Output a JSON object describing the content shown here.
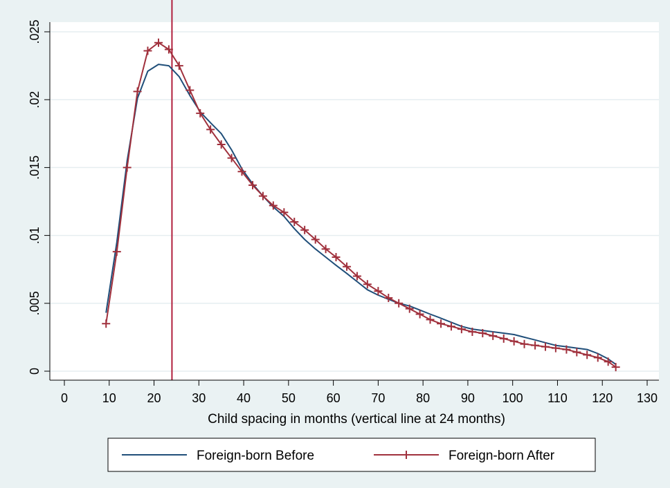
{
  "chart_data": {
    "type": "line",
    "title": "",
    "xlabel": "Child spacing in months (vertical line at 24 months)",
    "ylabel": "",
    "xlim": [
      0,
      130
    ],
    "ylim": [
      0,
      0.025
    ],
    "x_ticks": [
      0,
      10,
      20,
      30,
      40,
      50,
      60,
      70,
      80,
      90,
      100,
      110,
      120,
      130
    ],
    "x_tick_labels": [
      "0",
      "10",
      "20",
      "30",
      "40",
      "50",
      "60",
      "70",
      "80",
      "90",
      "100",
      "110",
      "120",
      "130"
    ],
    "y_ticks": [
      0,
      0.005,
      0.01,
      0.015,
      0.02,
      0.025
    ],
    "y_tick_labels": [
      "0",
      ".005",
      ".01",
      ".015",
      ".02",
      ".025"
    ],
    "grid": true,
    "vline": {
      "x": 24,
      "color": "#b01e3c"
    },
    "legend_position": "bottom",
    "series": [
      {
        "name": "Foreign-born Before",
        "color": "#1f4e79",
        "marker": "none",
        "x": [
          9.3,
          11.7,
          14,
          16.3,
          18.6,
          21,
          23.3,
          25.6,
          28,
          30.3,
          32.6,
          35,
          37.3,
          39.6,
          42,
          44.3,
          46.6,
          49,
          51.3,
          53.6,
          56,
          58.3,
          60.6,
          63,
          65.3,
          67.6,
          70,
          72.3,
          74.6,
          77,
          79.3,
          81.6,
          84,
          86.3,
          88.6,
          91,
          93.3,
          95.6,
          98,
          100.3,
          102.6,
          105,
          107.3,
          109.6,
          112,
          114.3,
          116.6,
          119,
          121.3,
          123
        ],
        "y": [
          0.0043,
          0.0095,
          0.0155,
          0.0201,
          0.0221,
          0.0226,
          0.0225,
          0.0217,
          0.0203,
          0.0191,
          0.0183,
          0.0175,
          0.0163,
          0.0149,
          0.0138,
          0.0129,
          0.0121,
          0.0114,
          0.0105,
          0.0097,
          0.009,
          0.0084,
          0.0078,
          0.0072,
          0.0066,
          0.006,
          0.0056,
          0.0053,
          0.005,
          0.0048,
          0.0045,
          0.0042,
          0.0039,
          0.0036,
          0.0033,
          0.0031,
          0.003,
          0.0029,
          0.0028,
          0.0027,
          0.0025,
          0.0023,
          0.0021,
          0.0019,
          0.0018,
          0.0017,
          0.0016,
          0.0013,
          0.0009,
          0.0005
        ]
      },
      {
        "name": "Foreign-born After",
        "color": "#a0303c",
        "marker": "plus",
        "x": [
          9.3,
          11.7,
          14,
          16.3,
          18.6,
          21,
          23.3,
          25.6,
          28,
          30.3,
          32.6,
          35,
          37.3,
          39.6,
          42,
          44.3,
          46.6,
          49,
          51.3,
          53.6,
          56,
          58.3,
          60.6,
          63,
          65.3,
          67.6,
          70,
          72.3,
          74.6,
          77,
          79.3,
          81.6,
          84,
          86.3,
          88.6,
          91,
          93.3,
          95.6,
          98,
          100.3,
          102.6,
          105,
          107.3,
          109.6,
          112,
          114.3,
          116.6,
          119,
          121.3,
          123
        ],
        "y": [
          0.0035,
          0.0088,
          0.015,
          0.0206,
          0.0236,
          0.0242,
          0.0237,
          0.0225,
          0.0207,
          0.019,
          0.0178,
          0.0167,
          0.0157,
          0.0147,
          0.0137,
          0.0129,
          0.0122,
          0.0117,
          0.011,
          0.0104,
          0.0097,
          0.009,
          0.0084,
          0.0077,
          0.007,
          0.0064,
          0.0059,
          0.0054,
          0.005,
          0.0046,
          0.0042,
          0.0038,
          0.0035,
          0.0033,
          0.0031,
          0.0029,
          0.0028,
          0.0026,
          0.0024,
          0.0022,
          0.002,
          0.0019,
          0.0018,
          0.0017,
          0.0016,
          0.0014,
          0.0012,
          0.001,
          0.0007,
          0.0003
        ]
      }
    ]
  }
}
